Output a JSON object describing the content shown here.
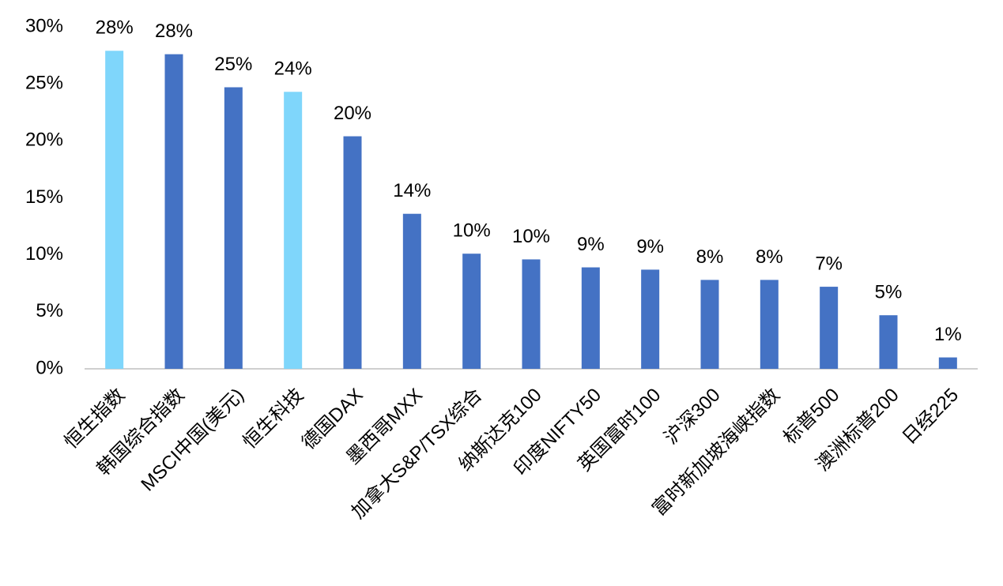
{
  "chart_data": {
    "type": "bar",
    "categories": [
      "恒生指数",
      "韩国综合指数",
      "MSCI中国(美元)",
      "恒生科技",
      "德国DAX",
      "墨西哥MXX",
      "加拿大S&P/TSX综合",
      "纳斯达克100",
      "印度NIFTY50",
      "英国富时100",
      "沪深300",
      "富时新加坡海峡指数",
      "标普500",
      "澳洲标普200",
      "日经225"
    ],
    "values": [
      27.9,
      27.6,
      24.7,
      24.3,
      20.4,
      13.6,
      10.1,
      9.6,
      8.9,
      8.7,
      7.8,
      7.8,
      7.2,
      4.7,
      1.0
    ],
    "value_labels": [
      "28%",
      "28%",
      "25%",
      "24%",
      "20%",
      "14%",
      "10%",
      "10%",
      "9%",
      "9%",
      "8%",
      "8%",
      "7%",
      "5%",
      "1%"
    ],
    "colors": [
      "#7fd6fb",
      "#4472c4",
      "#4472c4",
      "#7fd6fb",
      "#4472c4",
      "#4472c4",
      "#4472c4",
      "#4472c4",
      "#4472c4",
      "#4472c4",
      "#4472c4",
      "#4472c4",
      "#4472c4",
      "#4472c4",
      "#4472c4"
    ],
    "ylim": [
      0,
      30
    ],
    "yticks": [
      {
        "value": 0,
        "label": "0%"
      },
      {
        "value": 5,
        "label": "5%"
      },
      {
        "value": 10,
        "label": "10%"
      },
      {
        "value": 15,
        "label": "15%"
      },
      {
        "value": 20,
        "label": "20%"
      },
      {
        "value": 25,
        "label": "25%"
      },
      {
        "value": 30,
        "label": "30%"
      }
    ],
    "grid": false
  }
}
